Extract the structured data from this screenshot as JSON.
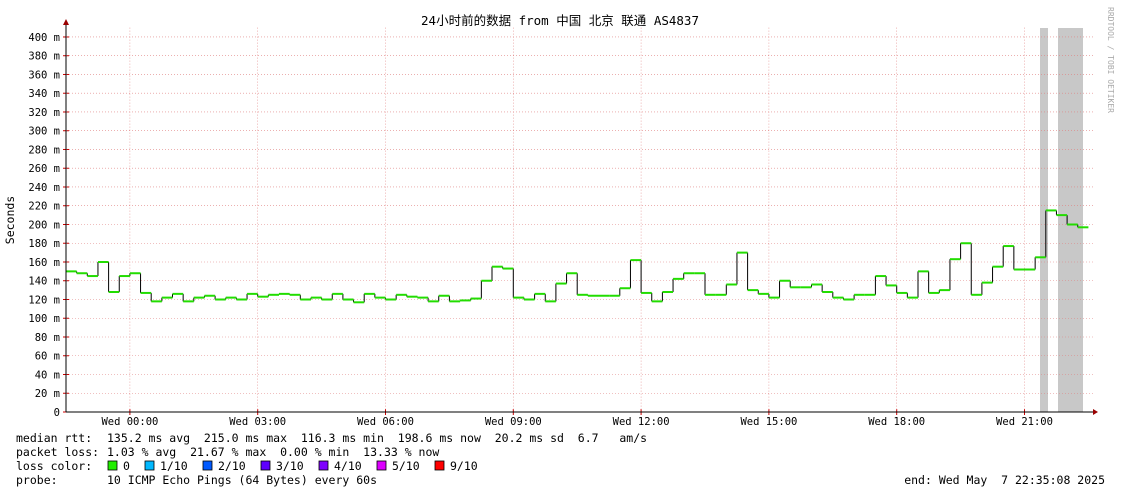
{
  "chart_data": {
    "type": "line",
    "title": "24小时前的数据 from 中国 北京 联通 AS4837",
    "y_label": "Seconds",
    "side_text": "RRDTOOL / TOBI OETIKER",
    "categories": [
      null,
      null,
      null,
      null,
      null,
      null,
      "Wed 00:00",
      null,
      null,
      null,
      null,
      null,
      null,
      null,
      null,
      null,
      null,
      null,
      "Wed 03:00",
      null,
      null,
      null,
      null,
      null,
      null,
      null,
      null,
      null,
      null,
      null,
      "Wed 06:00",
      null,
      null,
      null,
      null,
      null,
      null,
      null,
      null,
      null,
      null,
      null,
      "Wed 09:00",
      null,
      null,
      null,
      null,
      null,
      null,
      null,
      null,
      null,
      null,
      null,
      "Wed 12:00",
      null,
      null,
      null,
      null,
      null,
      null,
      null,
      null,
      null,
      null,
      null,
      "Wed 15:00",
      null,
      null,
      null,
      null,
      null,
      null,
      null,
      null,
      null,
      null,
      null,
      "Wed 18:00",
      null,
      null,
      null,
      null,
      null,
      null,
      null,
      null,
      null,
      null,
      null,
      "Wed 21:00",
      null,
      null,
      null,
      null,
      null
    ],
    "series": [
      {
        "name": "median rtt",
        "color": "#22dd00",
        "values": [
          0.15,
          0.148,
          0.145,
          0.16,
          0.128,
          0.145,
          0.148,
          0.127,
          0.118,
          0.122,
          0.126,
          0.118,
          0.122,
          0.124,
          0.12,
          0.122,
          0.12,
          0.126,
          0.123,
          0.125,
          0.126,
          0.125,
          0.12,
          0.122,
          0.12,
          0.126,
          0.12,
          0.117,
          0.126,
          0.122,
          0.12,
          0.125,
          0.123,
          0.122,
          0.118,
          0.124,
          0.118,
          0.119,
          0.121,
          0.14,
          0.155,
          0.153,
          0.122,
          0.12,
          0.126,
          0.118,
          0.137,
          0.148,
          0.125,
          0.124,
          0.124,
          0.124,
          0.132,
          0.162,
          0.127,
          0.118,
          0.128,
          0.142,
          0.148,
          0.148,
          0.125,
          0.125,
          0.136,
          0.17,
          0.13,
          0.126,
          0.122,
          0.14,
          0.133,
          0.133,
          0.136,
          0.128,
          0.122,
          0.12,
          0.125,
          0.125,
          0.145,
          0.135,
          0.127,
          0.122,
          0.15,
          0.127,
          0.13,
          0.163,
          0.18,
          0.125,
          0.138,
          0.155,
          0.177,
          0.152,
          0.152,
          0.165,
          0.215,
          0.21,
          0.2,
          0.197
        ]
      }
    ],
    "ylim": [
      0,
      0.41
    ],
    "yticks": [
      0,
      {
        "value": 0.02,
        "label": "20 m"
      },
      {
        "value": 0.04,
        "label": "40 m"
      },
      {
        "value": 0.06,
        "label": "60 m"
      },
      {
        "value": 0.08,
        "label": "80 m"
      },
      {
        "value": 0.1,
        "label": "100 m"
      },
      {
        "value": 0.12,
        "label": "120 m"
      },
      {
        "value": 0.14,
        "label": "140 m"
      },
      {
        "value": 0.16,
        "label": "160 m"
      },
      {
        "value": 0.18,
        "label": "180 m"
      },
      {
        "value": 0.2,
        "label": "200 m"
      },
      {
        "value": 0.22,
        "label": "220 m"
      },
      {
        "value": 0.24,
        "label": "240 m"
      },
      {
        "value": 0.26,
        "label": "260 m"
      },
      {
        "value": 0.28,
        "label": "280 m"
      },
      {
        "value": 0.3,
        "label": "300 m"
      },
      {
        "value": 0.32,
        "label": "320 m"
      },
      {
        "value": 0.34,
        "label": "340 m"
      },
      {
        "value": 0.36,
        "label": "360 m"
      },
      {
        "value": 0.38,
        "label": "380 m"
      },
      {
        "value": 0.4,
        "label": "400 m"
      }
    ],
    "grid": true,
    "stats": [
      {
        "label": "median rtt:",
        "text": "135.2 ms avg  215.0 ms max  116.3 ms min  198.6 ms now  20.2 ms sd  6.7   am/s"
      },
      {
        "label": "packet loss:",
        "text": "1.03 % avg  21.67 % max  0.00 % min  13.33 % now"
      }
    ],
    "loss_legend": {
      "label": "loss color:",
      "items": [
        {
          "name": "0",
          "color": "#22ee00"
        },
        {
          "name": "1/10",
          "color": "#00b8ff"
        },
        {
          "name": "2/10",
          "color": "#0059ff"
        },
        {
          "name": "3/10",
          "color": "#5e00ff"
        },
        {
          "name": "4/10",
          "color": "#7e00ff"
        },
        {
          "name": "5/10",
          "color": "#dd00ff"
        },
        {
          "name": "9/10",
          "color": "#ff0000"
        }
      ]
    },
    "probe": {
      "label": "probe:",
      "text": "10 ICMP Echo Pings (64 Bytes) every 60s"
    },
    "end": "end: Wed May  7 22:35:08 2025"
  }
}
